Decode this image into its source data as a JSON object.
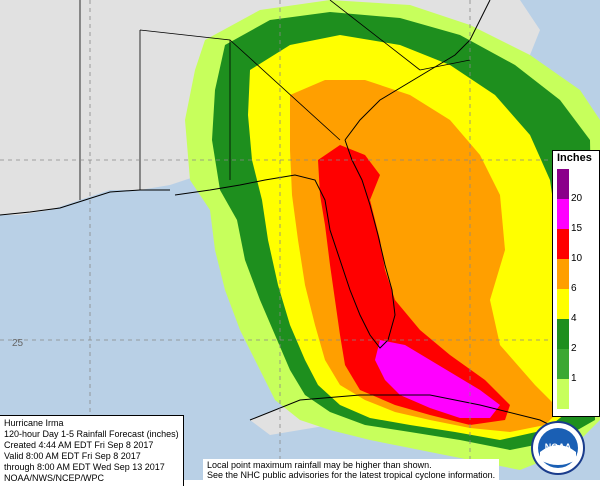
{
  "map": {
    "colors": {
      "ocean": "#b9d0e6",
      "land": "#e1e1e1",
      "band_0_1": "#3ba832",
      "band_1_2": "#c7ff5c",
      "band_2_4": "#1e8f1e",
      "band_4_6": "#ffff00",
      "band_6_10": "#ff9f00",
      "band_10_15": "#ff0000",
      "band_15_20": "#ff00ff",
      "band_20": "#8a008a"
    },
    "latitude_label": "25"
  },
  "info": {
    "line1": "Hurricane Irma",
    "line2": "120-hour Day 1-5 Rainfall Forecast (inches)",
    "line3": "Created 4:44 AM EDT Fri Sep 8 2017",
    "line4": "Valid 8:00 AM EDT Fri Sep 8 2017",
    "line5": "through 8:00 AM EDT Wed Sep 13 2017",
    "line6": "NOAA/NWS/NCEP/WPC"
  },
  "notes": {
    "line1": "Local point maximum rainfall may be higher than shown.",
    "line2": "See the NHC public advisories for the latest tropical cyclone information."
  },
  "legend": {
    "title": "Inches",
    "ticks": [
      "20",
      "15",
      "10",
      "6",
      "4",
      "2",
      "1"
    ],
    "colors": [
      "#8a008a",
      "#ff00ff",
      "#ff0000",
      "#ff9f00",
      "#ffff00",
      "#1e8f1e",
      "#3ba832",
      "#c7ff5c"
    ]
  },
  "logo": {
    "text": "NOAA"
  }
}
